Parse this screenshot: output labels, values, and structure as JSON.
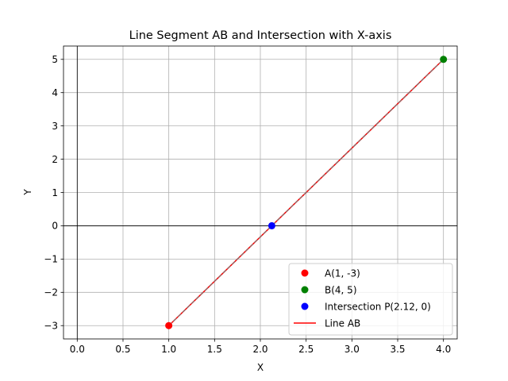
{
  "chart_data": {
    "type": "line",
    "title": "Line Segment AB and Intersection with X-axis",
    "xlabel": "X",
    "ylabel": "Y",
    "xlim": [
      -0.15,
      4.15
    ],
    "ylim": [
      -3.4,
      5.4
    ],
    "x_ticks": [
      0.0,
      0.5,
      1.0,
      1.5,
      2.0,
      2.5,
      3.0,
      3.5,
      4.0
    ],
    "x_tick_labels": [
      "0.0",
      "0.5",
      "1.0",
      "1.5",
      "2.0",
      "2.5",
      "3.0",
      "3.5",
      "4.0"
    ],
    "y_ticks": [
      -3,
      -2,
      -1,
      0,
      1,
      2,
      3,
      4,
      5
    ],
    "y_tick_labels": [
      "−3",
      "−2",
      "−1",
      "0",
      "1",
      "2",
      "3",
      "4",
      "5"
    ],
    "grid": true,
    "axis_lines": {
      "x": 0,
      "y": 0
    },
    "legend_position": "lower-right",
    "points": [
      {
        "name": "A(1, -3)",
        "x": 1,
        "y": -3,
        "color": "#ff0000"
      },
      {
        "name": "B(4, 5)",
        "x": 4,
        "y": 5,
        "color": "#008000"
      },
      {
        "name": "Intersection P(2.12, 0)",
        "x": 2.125,
        "y": 0,
        "color": "#0000ff"
      }
    ],
    "series": [
      {
        "name": "Line AB",
        "x": [
          1,
          4
        ],
        "y": [
          -3,
          5
        ],
        "color": "#ff0000"
      }
    ],
    "dashed_overlay": {
      "x": [
        1,
        4
      ],
      "y": [
        -3,
        5
      ],
      "color": "#808080"
    }
  }
}
